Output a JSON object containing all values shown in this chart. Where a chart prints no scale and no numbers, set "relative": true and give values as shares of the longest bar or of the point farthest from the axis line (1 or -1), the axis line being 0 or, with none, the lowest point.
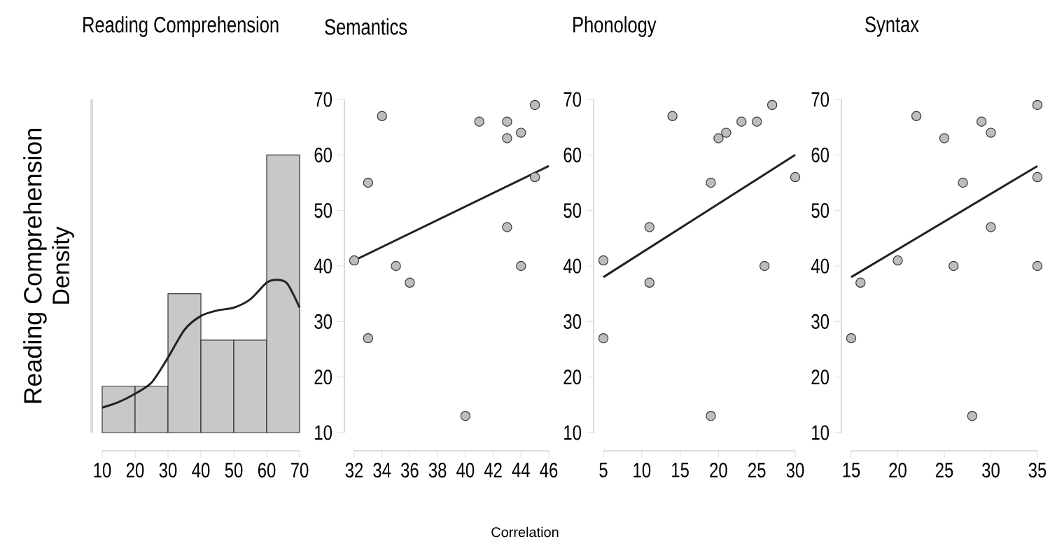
{
  "chart_data": [
    {
      "type": "histogram",
      "title": "Reading Comprehension",
      "ylabel": "Density",
      "relative": true,
      "color": "#c8c8c8",
      "tick_labels": "x",
      "bins": [
        10,
        20,
        30,
        40,
        50,
        60,
        70
      ],
      "values": [
        0.167,
        0.167,
        0.5,
        0.333,
        0.333,
        1
      ],
      "xlim": [
        10,
        70
      ],
      "xticks": [
        10,
        20,
        30,
        40,
        50,
        60,
        70
      ],
      "series": [
        {
          "type": "line",
          "color": "#222222",
          "x": [
            10,
            15,
            20,
            25,
            30,
            35,
            40,
            45,
            50,
            55,
            60,
            63,
            66,
            68,
            70
          ],
          "values": [
            0.09,
            0.11,
            0.14,
            0.18,
            0.27,
            0.37,
            0.42,
            0.44,
            0.45,
            0.48,
            0.54,
            0.55,
            0.54,
            0.5,
            0.45
          ]
        }
      ]
    },
    {
      "type": "scatter",
      "title": "Semantics",
      "ylabel": "Reading Comprehension",
      "xlim": [
        32,
        46
      ],
      "xticks": [
        32,
        34,
        36,
        38,
        40,
        42,
        44,
        46
      ],
      "ylim": [
        10,
        70
      ],
      "yticks": [
        10,
        20,
        30,
        40,
        50,
        60,
        70
      ],
      "series": [
        {
          "color": "#bdbdbd",
          "marker": "circle",
          "x": [
            32,
            33,
            33,
            34,
            35,
            36,
            40,
            41,
            43,
            43,
            43,
            44,
            44,
            45,
            45
          ],
          "values": [
            41,
            55,
            27,
            67,
            40,
            37,
            13,
            66,
            66,
            63,
            47,
            64,
            40,
            69,
            56
          ]
        },
        {
          "type": "line",
          "color": "#222222",
          "x": [
            32,
            46
          ],
          "values": [
            41,
            58
          ]
        }
      ]
    },
    {
      "type": "scatter",
      "title": "Phonology",
      "xlabel": "Correlation",
      "xlim": [
        5,
        30
      ],
      "xticks": [
        5,
        10,
        15,
        20,
        25,
        30
      ],
      "ylim": [
        10,
        70
      ],
      "yticks": [
        10,
        20,
        30,
        40,
        50,
        60,
        70
      ],
      "series": [
        {
          "color": "#bdbdbd",
          "marker": "circle",
          "x": [
            5,
            5,
            11,
            11,
            14,
            19,
            19,
            20,
            21,
            23,
            25,
            26,
            27,
            30
          ],
          "values": [
            41,
            27,
            47,
            37,
            67,
            55,
            13,
            63,
            64,
            66,
            66,
            40,
            69,
            56
          ]
        },
        {
          "type": "line",
          "color": "#222222",
          "x": [
            5,
            30
          ],
          "values": [
            38,
            60
          ]
        }
      ]
    },
    {
      "type": "scatter",
      "title": "Syntax",
      "xlim": [
        15,
        35
      ],
      "xticks": [
        15,
        20,
        25,
        30,
        35
      ],
      "ylim": [
        10,
        70
      ],
      "yticks": [
        10,
        20,
        30,
        40,
        50,
        60,
        70
      ],
      "series": [
        {
          "color": "#bdbdbd",
          "marker": "circle",
          "x": [
            15,
            16,
            20,
            22,
            25,
            26,
            27,
            28,
            29,
            30,
            30,
            35,
            35,
            35
          ],
          "values": [
            27,
            37,
            41,
            67,
            63,
            40,
            55,
            13,
            66,
            64,
            47,
            69,
            56,
            40
          ]
        },
        {
          "type": "line",
          "color": "#222222",
          "x": [
            15,
            35
          ],
          "values": [
            38,
            58
          ]
        }
      ]
    }
  ]
}
